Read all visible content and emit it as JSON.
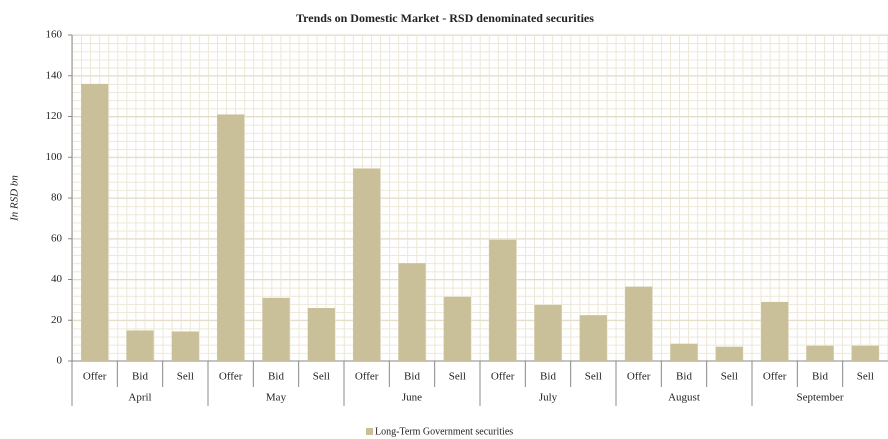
{
  "chart_data": {
    "type": "bar",
    "title": "Trends on Domestic Market - RSD denominated securities",
    "y_label": "In RSD bn",
    "categories": [
      "Offer",
      "Bid",
      "Sell",
      "Offer",
      "Bid",
      "Sell",
      "Offer",
      "Bid",
      "Sell",
      "Offer",
      "Bid",
      "Sell",
      "Offer",
      "Bid",
      "Sell",
      "Offer",
      "Bid",
      "Sell"
    ],
    "groups": [
      "April",
      "May",
      "June",
      "July",
      "August",
      "September"
    ],
    "series": [
      {
        "name": "Long-Term Government securities",
        "color": "#c9bf99",
        "values": [
          136,
          15,
          14.5,
          121,
          31,
          26,
          94.5,
          48,
          31.5,
          59.5,
          27.5,
          22.5,
          36.5,
          8.5,
          7,
          29,
          7.5,
          7.5
        ]
      }
    ],
    "ylim": [
      0,
      160
    ],
    "yticks": [
      0,
      20,
      40,
      60,
      80,
      100,
      120,
      140,
      160
    ],
    "grid": true,
    "legend": "bottom"
  }
}
